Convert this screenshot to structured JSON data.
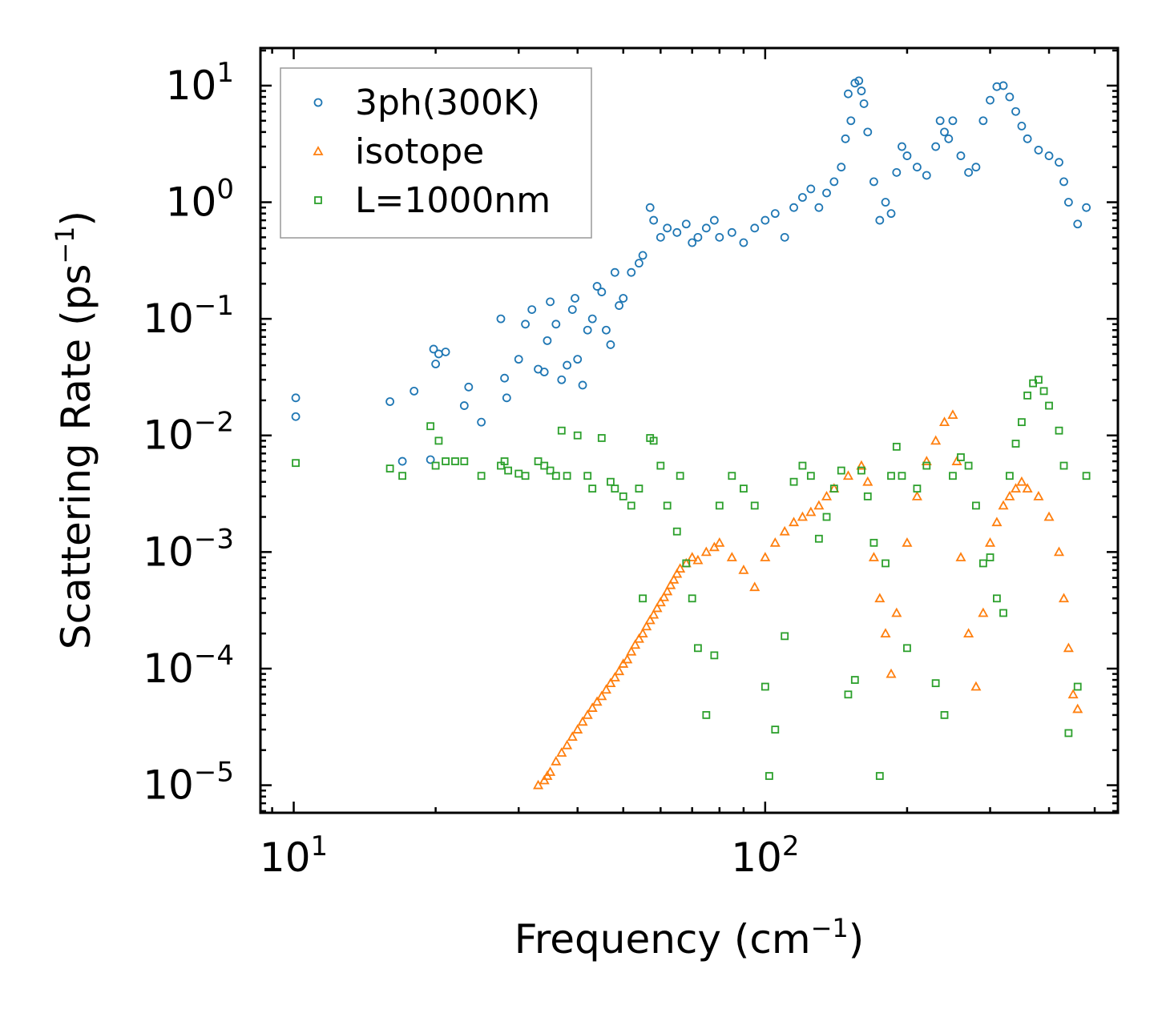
{
  "chart_data": {
    "type": "scatter",
    "xscale": "log",
    "yscale": "log",
    "xlim": [
      8.5,
      560
    ],
    "ylim": [
      5.8e-06,
      21
    ],
    "xlabel": "Frequency (cm",
    "xlabel_sup": "−1",
    "xlabel_close": ")",
    "ylabel": "Scattering Rate (ps",
    "ylabel_sup": "−1",
    "ylabel_close": ")",
    "x_ticks": [
      {
        "value": 10,
        "base": "10",
        "exp": "1"
      },
      {
        "value": 100,
        "base": "10",
        "exp": "2"
      }
    ],
    "y_ticks": [
      {
        "value": 10,
        "base": "10",
        "exp": "1"
      },
      {
        "value": 1,
        "base": "10",
        "exp": "0"
      },
      {
        "value": 0.1,
        "base": "10",
        "exp": "−1"
      },
      {
        "value": 0.01,
        "base": "10",
        "exp": "−2"
      },
      {
        "value": 0.001,
        "base": "10",
        "exp": "−3"
      },
      {
        "value": 0.0001,
        "base": "10",
        "exp": "−4"
      },
      {
        "value": 1e-05,
        "base": "10",
        "exp": "−5"
      }
    ],
    "legend_position": "top-left",
    "series": [
      {
        "name": "3ph(300K)",
        "marker": "circle",
        "color": "#1f77b4",
        "x": [
          10.1,
          10.1,
          16,
          17,
          18,
          19.5,
          19.8,
          20,
          20.3,
          21,
          23,
          23.5,
          25,
          27.5,
          28,
          28.3,
          30,
          31,
          32,
          33,
          34,
          34.5,
          35,
          36,
          37,
          38,
          39,
          39.5,
          40,
          41,
          42,
          43,
          44,
          45,
          46,
          47,
          48,
          49,
          50,
          52,
          54,
          55,
          57,
          58,
          60,
          62,
          65,
          68,
          70,
          72,
          75,
          78,
          80,
          85,
          90,
          95,
          100,
          105,
          110,
          115,
          120,
          125,
          130,
          135,
          140,
          145,
          148,
          150,
          152,
          155,
          158,
          160,
          162,
          165,
          170,
          175,
          180,
          185,
          190,
          195,
          200,
          210,
          220,
          230,
          235,
          240,
          245,
          250,
          260,
          270,
          280,
          290,
          300,
          310,
          320,
          330,
          340,
          350,
          360,
          380,
          400,
          420,
          430,
          440,
          460,
          480
        ],
        "y": [
          0.021,
          0.0145,
          0.0195,
          0.006,
          0.024,
          0.0062,
          0.055,
          0.041,
          0.05,
          0.052,
          0.018,
          0.026,
          0.013,
          0.1,
          0.031,
          0.021,
          0.045,
          0.09,
          0.12,
          0.037,
          0.035,
          0.065,
          0.14,
          0.09,
          0.03,
          0.04,
          0.12,
          0.15,
          0.045,
          0.027,
          0.08,
          0.1,
          0.19,
          0.17,
          0.08,
          0.06,
          0.25,
          0.13,
          0.15,
          0.25,
          0.3,
          0.35,
          0.9,
          0.7,
          0.5,
          0.6,
          0.55,
          0.65,
          0.45,
          0.5,
          0.6,
          0.7,
          0.5,
          0.55,
          0.45,
          0.6,
          0.7,
          0.8,
          0.5,
          0.9,
          1.1,
          1.3,
          0.9,
          1.2,
          1.5,
          2.0,
          3.5,
          8.5,
          5.0,
          10.5,
          11,
          9,
          7,
          4,
          1.5,
          0.7,
          1.0,
          0.8,
          1.8,
          3.0,
          2.5,
          2.0,
          1.7,
          3.0,
          5.0,
          4.0,
          3.5,
          5.0,
          2.5,
          1.8,
          2.0,
          5.0,
          7.5,
          9.8,
          10,
          8.0,
          6.0,
          4.5,
          3.5,
          2.8,
          2.5,
          2.2,
          1.5,
          1.0,
          0.65,
          0.9
        ]
      },
      {
        "name": "isotope",
        "marker": "triangle",
        "color": "#ff7f0e",
        "x": [
          33,
          34,
          34.5,
          35,
          36,
          37,
          38,
          39,
          40,
          41,
          42,
          43,
          44,
          45,
          46,
          47,
          48,
          49,
          50,
          51,
          52,
          53,
          54,
          55,
          56,
          57,
          58,
          59,
          60,
          61,
          62,
          63,
          64,
          65,
          66,
          68,
          70,
          72,
          75,
          78,
          80,
          85,
          90,
          95,
          100,
          105,
          110,
          115,
          120,
          125,
          130,
          135,
          140,
          150,
          160,
          165,
          170,
          175,
          180,
          185,
          190,
          200,
          210,
          220,
          230,
          240,
          250,
          255,
          260,
          270,
          280,
          290,
          300,
          310,
          320,
          330,
          340,
          350,
          360,
          380,
          400,
          420,
          430,
          440,
          450,
          460
        ],
        "y": [
          1e-05,
          1.1e-05,
          1.2e-05,
          1.3e-05,
          1.6e-05,
          1.9e-05,
          2.2e-05,
          2.6e-05,
          3e-05,
          3.5e-05,
          4e-05,
          4.6e-05,
          5.2e-05,
          5.8e-05,
          6.6e-05,
          7.5e-05,
          8.4e-05,
          9.5e-05,
          0.00011,
          0.00012,
          0.00014,
          0.00016,
          0.00018,
          0.0002,
          0.00023,
          0.00026,
          0.00029,
          0.00033,
          0.00037,
          0.00041,
          0.00046,
          0.00052,
          0.00058,
          0.00065,
          0.00072,
          0.0008,
          0.0009,
          0.00085,
          0.001,
          0.0011,
          0.0012,
          0.0009,
          0.0007,
          0.0005,
          0.0009,
          0.0012,
          0.0015,
          0.0018,
          0.002,
          0.0022,
          0.0025,
          0.003,
          0.0035,
          0.0045,
          0.0055,
          0.004,
          0.0009,
          0.0004,
          0.0002,
          9e-05,
          0.0003,
          0.0012,
          0.003,
          0.006,
          0.009,
          0.013,
          0.015,
          0.006,
          0.0009,
          0.0002,
          7e-05,
          0.0003,
          0.0012,
          0.0018,
          0.0025,
          0.003,
          0.0035,
          0.004,
          0.0035,
          0.003,
          0.002,
          0.001,
          0.0004,
          0.00015,
          6e-05,
          4.5e-05
        ]
      },
      {
        "name": "L=1000nm",
        "marker": "square",
        "color": "#2ca02c",
        "x": [
          10.1,
          16,
          17,
          19.5,
          20,
          20.3,
          21,
          22,
          23,
          25,
          27.5,
          28,
          28.5,
          30,
          31,
          33,
          34,
          35,
          36,
          37,
          38,
          40,
          42,
          43,
          45,
          47,
          48,
          50,
          52,
          54,
          55,
          57,
          58,
          60,
          62,
          65,
          66,
          68,
          70,
          72,
          75,
          78,
          80,
          85,
          90,
          95,
          100,
          102,
          105,
          110,
          115,
          120,
          125,
          130,
          135,
          140,
          145,
          150,
          155,
          160,
          165,
          170,
          175,
          180,
          185,
          190,
          195,
          200,
          210,
          220,
          230,
          240,
          250,
          260,
          270,
          280,
          290,
          300,
          310,
          320,
          330,
          340,
          350,
          360,
          370,
          380,
          390,
          400,
          420,
          430,
          440,
          460,
          480
        ],
        "y": [
          0.0058,
          0.0052,
          0.0045,
          0.012,
          0.0055,
          0.009,
          0.006,
          0.006,
          0.006,
          0.0045,
          0.0055,
          0.006,
          0.005,
          0.0047,
          0.0045,
          0.006,
          0.0055,
          0.005,
          0.0045,
          0.011,
          0.0045,
          0.01,
          0.0045,
          0.0035,
          0.0095,
          0.004,
          0.0035,
          0.003,
          0.0025,
          0.0035,
          0.0004,
          0.0095,
          0.009,
          0.0055,
          0.0025,
          0.0015,
          0.0045,
          0.0008,
          0.0004,
          0.00015,
          4e-05,
          0.00013,
          0.0025,
          0.0045,
          0.0035,
          0.0025,
          7e-05,
          1.2e-05,
          3e-05,
          0.00019,
          0.004,
          0.0055,
          0.0045,
          0.0013,
          0.002,
          0.0035,
          0.005,
          6e-05,
          8e-05,
          0.005,
          0.003,
          0.0012,
          1.2e-05,
          0.0008,
          0.0045,
          0.008,
          0.0045,
          0.00015,
          0.0035,
          0.0055,
          7.5e-05,
          4e-05,
          0.0045,
          0.0065,
          0.0055,
          0.0025,
          0.0008,
          0.0009,
          0.0004,
          0.0003,
          0.0045,
          0.0085,
          0.013,
          0.022,
          0.028,
          0.03,
          0.024,
          0.018,
          0.011,
          0.0055,
          2.8e-05,
          7e-05,
          0.0045
        ]
      }
    ]
  }
}
